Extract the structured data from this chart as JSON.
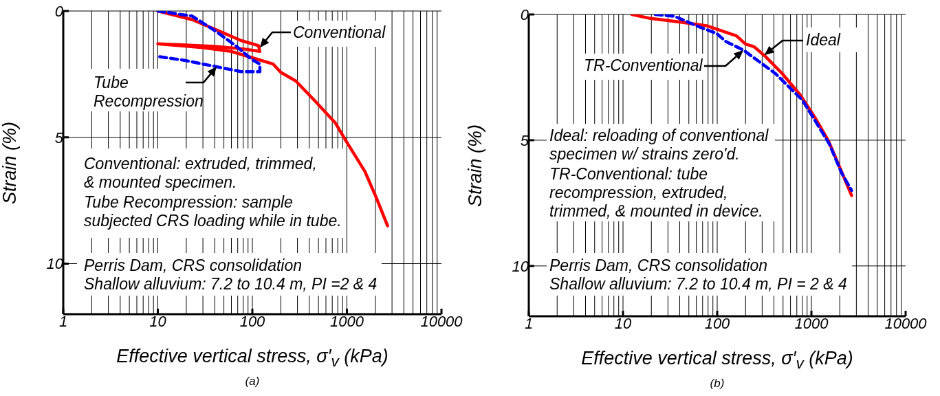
{
  "chart_data": [
    {
      "type": "line",
      "title": "(a)",
      "xlabel": "Effective vertical stress, σ′$_{v}$ (kPa)",
      "ylabel": "Strain (%)",
      "log": "x",
      "xlim": [
        1,
        10000
      ],
      "xticks": [
        1,
        10,
        100,
        1000,
        10000
      ],
      "ylim": [
        12,
        0
      ],
      "yticks": [
        0,
        5,
        10
      ],
      "grid": true,
      "marker": "none",
      "series": [
        {
          "color": "#ff0000",
          "line_style": "solid",
          "x": [
            10,
            23,
            47,
            76,
            116,
            120,
            80,
            40,
            10,
            30,
            60,
            100,
            166,
            200,
            288,
            457,
            751,
            1000,
            1550,
            2050,
            2690
          ],
          "values": [
            0,
            0.34,
            0.83,
            1.17,
            1.37,
            1.6,
            1.5,
            1.4,
            1.3,
            1.45,
            1.6,
            1.85,
            2.1,
            2.43,
            2.77,
            3.55,
            4.42,
            5.2,
            6.35,
            7.4,
            8.5
          ]
        },
        {
          "color": "#0000ff",
          "line_style": "dashed",
          "x": [
            10,
            23,
            41,
            68,
            97,
            120,
            120,
            76,
            41,
            19,
            10
          ],
          "values": [
            0,
            0.2,
            0.8,
            1.4,
            1.9,
            2.1,
            2.4,
            2.4,
            2.2,
            1.95,
            1.8
          ]
        }
      ],
      "annotations": [
        {
          "text": "Conventional",
          "x": 120,
          "y": 1.45
        },
        {
          "text": "Tube\nRecompression",
          "x": 42,
          "y": 2.2
        },
        "Conventional: extruded, trimmed,\n& mounted specimen.",
        "Tube Recompression: sample\nsubjected CRS loading while in tube.",
        "Perris Dam, CRS consolidation",
        "Shallow alluvium: 7.2 to 10.4 m, PI =2 & 4"
      ]
    },
    {
      "type": "line",
      "title": "(b)",
      "xlabel": "Effective vertical stress, σ′$_{v}$ (kPa)",
      "ylabel": "Strain (%)",
      "log": "x",
      "xlim": [
        1,
        10000
      ],
      "xticks": [
        1,
        10,
        100,
        1000,
        10000
      ],
      "ylim": [
        12,
        0
      ],
      "yticks": [
        0,
        5,
        10
      ],
      "grid": true,
      "marker": "none",
      "series": [
        {
          "color": "#ff0000",
          "line_style": "solid",
          "x": [
            12.4,
            19.6,
            40,
            77,
            160,
            200,
            245,
            325,
            490,
            760,
            1090,
            1520,
            2090,
            2670
          ],
          "values": [
            0,
            0.16,
            0.3,
            0.45,
            0.85,
            1.18,
            1.28,
            1.67,
            2.35,
            3.2,
            4.1,
            5.03,
            6.25,
            7.2
          ]
        },
        {
          "color": "#0000ff",
          "line_style": "dashed",
          "x": [
            22,
            35,
            65,
            98,
            124,
            190,
            275,
            415,
            560,
            800,
            1170,
            1550,
            2090,
            2670
          ],
          "values": [
            0,
            0.07,
            0.5,
            0.75,
            1.08,
            1.42,
            1.86,
            2.35,
            2.83,
            3.4,
            4.4,
            5.15,
            6.3,
            7.0
          ]
        }
      ],
      "annotations": [
        {
          "text": "Ideal",
          "x": 316,
          "y": 1.62
        },
        {
          "text": "TR-Conventional",
          "x": 190,
          "y": 1.42
        },
        "Ideal: reloading of conventional\nspecimen w/ strains zero'd.",
        "TR-Conventional: tube\nrecompression, extruded,\ntrimmed, & mounted in device.",
        "Perris Dam, CRS consolidation",
        "Shallow alluvium: 7.2 to 10.4 m, PI = 2 & 4"
      ]
    }
  ]
}
